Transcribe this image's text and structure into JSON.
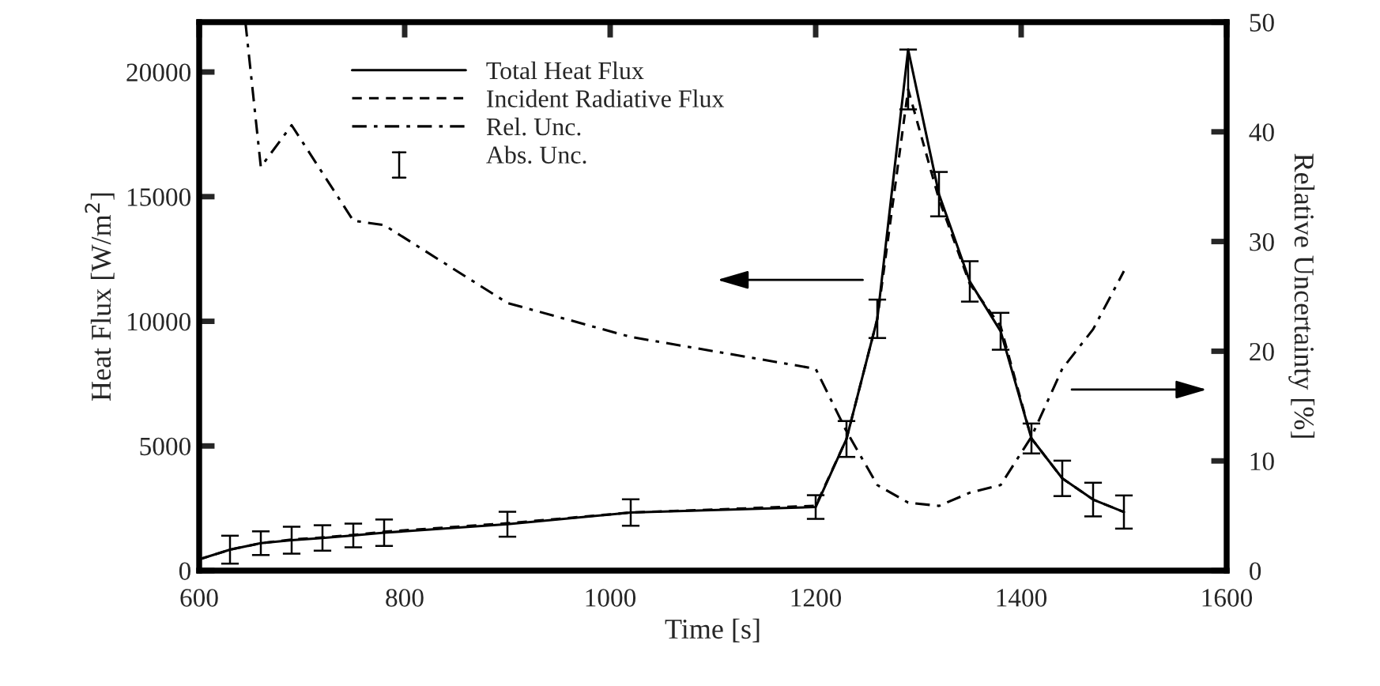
{
  "chart_data": {
    "type": "line",
    "xlabel": "Time [s]",
    "ylabel": "Heat Flux [W/m$^{2}$]",
    "y2label": "Relative Uncertainty [%]",
    "annotations": [
      "Abs. Unc."
    ],
    "x": [
      600,
      630,
      660,
      690,
      720,
      750,
      780,
      900,
      1020,
      1200,
      1230,
      1260,
      1290,
      1320,
      1350,
      1380,
      1410,
      1440,
      1470,
      1500
    ],
    "series": [
      {
        "name": "Total Heat Flux",
        "color": "#000000",
        "line_style": "solid",
        "values": [
          450,
          840,
          1100,
          1220,
          1310,
          1410,
          1520,
          1860,
          2330,
          2550,
          5280,
          10100,
          20900,
          15100,
          11600,
          9600,
          5300,
          3700,
          2850,
          2350
        ],
        "errors": [
          null,
          560,
          475,
          540,
          510,
          475,
          530,
          500,
          530,
          475,
          720,
          770,
          [
            18500,
            20900
          ],
          890,
          810,
          740,
          600,
          710,
          675,
          665
        ]
      },
      {
        "name": "Incident Radiative Flux",
        "color": "#000000",
        "line_style": "dashed",
        "values": [
          450,
          840,
          1100,
          1250,
          1330,
          1430,
          1560,
          1900,
          2330,
          2600,
          5280,
          10100,
          19300,
          14900,
          11500,
          9800,
          5300,
          3700,
          2850,
          2350
        ]
      },
      {
        "name": "Rel. Unc.",
        "color": "#000000",
        "line_style": "dashdot",
        "axis": "y2",
        "x": [
          645,
          660,
          690,
          750,
          780,
          900,
          1020,
          1200,
          1230,
          1260,
          1290,
          1320,
          1350,
          1380,
          1410,
          1440,
          1470,
          1500
        ],
        "values": [
          50,
          36.8,
          40.6,
          31.9,
          31.5,
          24.4,
          21.3,
          18.4,
          12.7,
          7.8,
          6.2,
          5.9,
          7.1,
          7.8,
          12.2,
          18.4,
          22.0,
          27.3
        ]
      }
    ],
    "xlim": [
      600,
      1600
    ],
    "xticks": [
      600,
      800,
      1000,
      1200,
      1400,
      1600
    ],
    "ylim": [
      0,
      22000
    ],
    "yticks": [
      0,
      5000,
      10000,
      15000,
      20000
    ],
    "y2lim": [
      0,
      50
    ],
    "y2ticks": [
      0,
      10,
      20,
      30,
      40,
      50
    ],
    "legend": "top",
    "grid": false
  }
}
